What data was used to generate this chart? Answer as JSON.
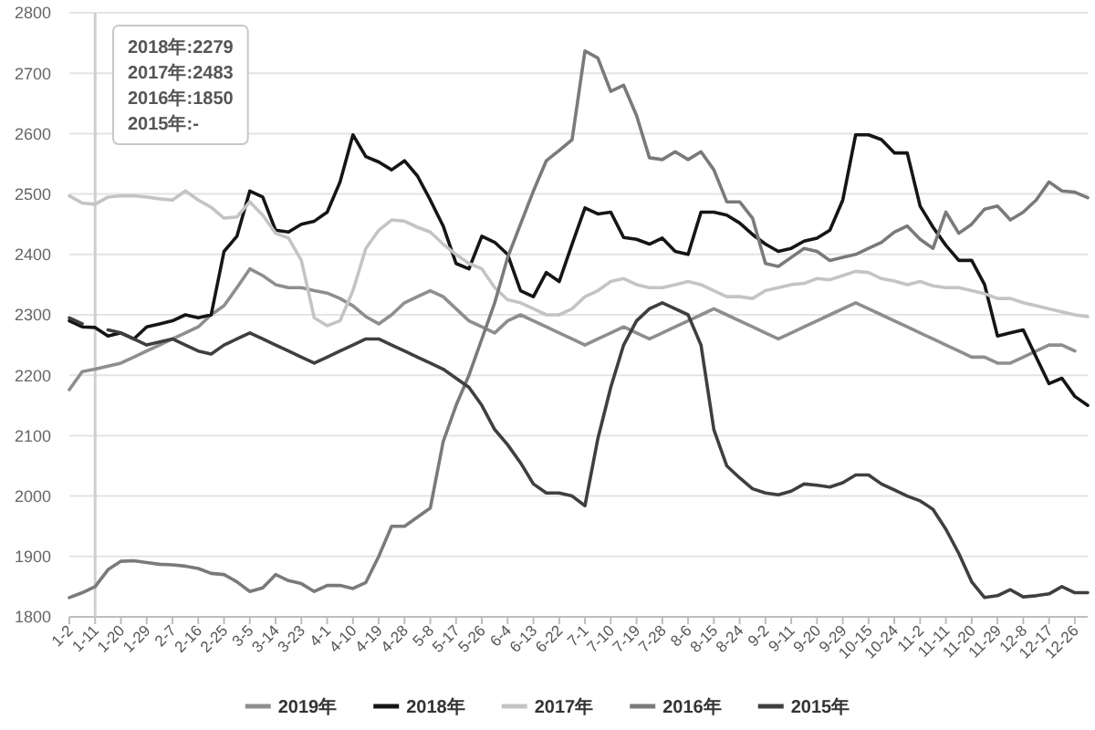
{
  "chart_data": {
    "type": "line",
    "categories": [
      "1-2",
      null,
      "1-11",
      null,
      "1-20",
      null,
      "1-29",
      null,
      "2-7",
      null,
      "2-16",
      null,
      "2-25",
      null,
      "3-5",
      null,
      "3-14",
      null,
      "3-23",
      null,
      "4-1",
      null,
      "4-10",
      null,
      "4-19",
      null,
      "4-28",
      null,
      "5-8",
      null,
      "5-17",
      null,
      "5-26",
      null,
      "6-4",
      null,
      "6-13",
      null,
      "6-22",
      null,
      "7-1",
      null,
      "7-10",
      null,
      "7-19",
      null,
      "7-28",
      null,
      "8-6",
      null,
      "8-15",
      null,
      "8-24",
      null,
      "9-2",
      null,
      "9-11",
      null,
      "9-20",
      null,
      "9-29",
      null,
      "10-15",
      null,
      "10-24",
      null,
      "11-2",
      null,
      "11-11",
      null,
      "11-20",
      null,
      "11-29",
      null,
      "12-8",
      null,
      "12-17",
      null,
      "12-26",
      null
    ],
    "ylim": [
      1800,
      2800
    ],
    "yticks": [
      1800,
      1900,
      2000,
      2100,
      2200,
      2300,
      2400,
      2500,
      2600,
      2700,
      2800
    ],
    "grid": "y",
    "legend": "bottom",
    "series": [
      {
        "name": "2019年",
        "color": "#8e8e8e",
        "values": [
          2176,
          2206,
          2210,
          2215,
          2220,
          2230,
          2240,
          2250,
          2260,
          2270,
          2280,
          2300,
          2315,
          2345,
          2376,
          2365,
          2350,
          2345,
          2345,
          2340,
          2336,
          2327,
          2315,
          2297,
          2285,
          2300,
          2320,
          2330,
          2340,
          2330,
          2310,
          2290,
          2280,
          2270,
          2290,
          2300,
          2290,
          2280,
          2270,
          2260,
          2250,
          2260,
          2270,
          2280,
          2270,
          2260,
          2270,
          2280,
          2290,
          2300,
          2310,
          2300,
          2290,
          2280,
          2270,
          2260,
          2270,
          2280,
          2290,
          2300,
          2310,
          2320,
          2310,
          2300,
          2290,
          2280,
          2270,
          2260,
          2250,
          2240,
          2230,
          2230,
          2220,
          2220,
          2230,
          2240,
          2250,
          2250,
          2240,
          null
        ]
      },
      {
        "name": "2018年",
        "color": "#151515",
        "values": [
          2290,
          2280,
          2279,
          2265,
          2270,
          2260,
          2280,
          2285,
          2290,
          2300,
          2295,
          2300,
          2405,
          2430,
          2505,
          2495,
          2440,
          2437,
          2450,
          2455,
          2470,
          2520,
          2598,
          2562,
          2553,
          2540,
          2555,
          2530,
          2490,
          2447,
          2385,
          2376,
          2430,
          2420,
          2400,
          2340,
          2330,
          2370,
          2355,
          2417,
          2477,
          2467,
          2470,
          2428,
          2425,
          2417,
          2427,
          2405,
          2400,
          2470,
          2470,
          2465,
          2452,
          2433,
          2417,
          2405,
          2410,
          2422,
          2427,
          2440,
          2490,
          2598,
          2598,
          2590,
          2568,
          2568,
          2480,
          2445,
          2415,
          2390,
          2390,
          2350,
          2265,
          2270,
          2275,
          2230,
          2186,
          2195,
          2165,
          2150
        ]
      },
      {
        "name": "2017年",
        "color": "#c4c4c4",
        "values": [
          2497,
          2485,
          2483,
          2495,
          2497,
          2497,
          2495,
          2492,
          2490,
          2505,
          2490,
          2478,
          2460,
          2462,
          2487,
          2465,
          2435,
          2427,
          2390,
          2295,
          2282,
          2290,
          2340,
          2410,
          2440,
          2457,
          2455,
          2445,
          2437,
          2417,
          2400,
          2385,
          2376,
          2345,
          2325,
          2320,
          2310,
          2300,
          2300,
          2310,
          2330,
          2340,
          2355,
          2360,
          2350,
          2345,
          2345,
          2350,
          2355,
          2350,
          2340,
          2330,
          2330,
          2327,
          2340,
          2345,
          2350,
          2352,
          2360,
          2358,
          2365,
          2372,
          2370,
          2360,
          2356,
          2350,
          2355,
          2348,
          2345,
          2345,
          2340,
          2335,
          2327,
          2327,
          2320,
          2315,
          2310,
          2305,
          2300,
          2297
        ]
      },
      {
        "name": "2016年",
        "color": "#7a7a7a",
        "values": [
          1832,
          1840,
          1850,
          1878,
          1892,
          1893,
          1890,
          1887,
          1886,
          1884,
          1880,
          1872,
          1870,
          1858,
          1842,
          1848,
          1870,
          1860,
          1855,
          1842,
          1852,
          1852,
          1847,
          1857,
          1900,
          1950,
          1950,
          1965,
          1980,
          2090,
          2150,
          2200,
          2260,
          2320,
          2395,
          2450,
          2505,
          2555,
          2572,
          2590,
          2737,
          2725,
          2670,
          2680,
          2630,
          2560,
          2557,
          2570,
          2557,
          2570,
          2540,
          2487,
          2487,
          2460,
          2385,
          2380,
          2395,
          2410,
          2405,
          2390,
          2395,
          2400,
          2410,
          2420,
          2437,
          2447,
          2425,
          2410,
          2470,
          2435,
          2450,
          2475,
          2480,
          2457,
          2470,
          2490,
          2520,
          2505,
          2503,
          2494
        ]
      },
      {
        "name": "2015年",
        "color": "#3f3f3f",
        "values": [
          2295,
          2285,
          null,
          2275,
          2270,
          2260,
          2250,
          2255,
          2260,
          2250,
          2240,
          2235,
          2250,
          2260,
          2270,
          2260,
          2250,
          2240,
          2230,
          2220,
          2230,
          2240,
          2250,
          2260,
          2260,
          2250,
          2240,
          2230,
          2220,
          2210,
          2195,
          2180,
          2150,
          2110,
          2085,
          2055,
          2020,
          2005,
          2005,
          2000,
          1984,
          2095,
          2180,
          2250,
          2290,
          2310,
          2320,
          2310,
          2300,
          2250,
          2110,
          2050,
          2030,
          2012,
          2005,
          2002,
          2008,
          2020,
          2018,
          2015,
          2022,
          2035,
          2035,
          2020,
          2010,
          2000,
          1992,
          1978,
          1945,
          1905,
          1858,
          1832,
          1835,
          1845,
          1833,
          1835,
          1838,
          1850,
          1840,
          1840
        ]
      }
    ],
    "ref_lines": [
      {
        "axis": "x",
        "value": "1-11",
        "color": "#cfcfcf"
      }
    ],
    "annotations": [
      "2018年:2279",
      "2017年:2483",
      "2016年:1850",
      "2015年:-"
    ]
  }
}
